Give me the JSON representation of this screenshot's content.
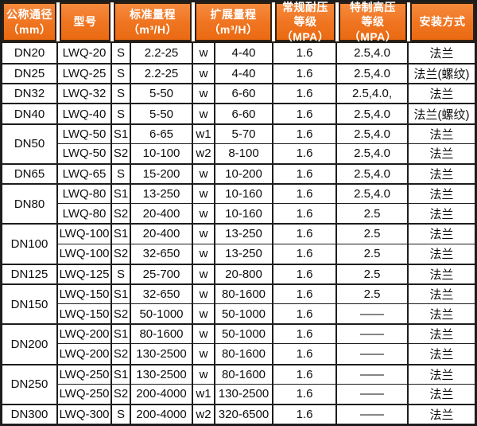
{
  "table": {
    "headers": [
      {
        "id": "dn",
        "label": "公称通径\n（mm）"
      },
      {
        "id": "model",
        "label": "型号"
      },
      {
        "id": "std",
        "label": "标准量程\n（m³/H）"
      },
      {
        "id": "ext",
        "label": "扩展量程\n（m³/H）"
      },
      {
        "id": "mpa",
        "label": "常规耐压\n等级（MPA）"
      },
      {
        "id": "hi",
        "label": "特制高压\n等级（MPA）"
      },
      {
        "id": "install",
        "label": "安装方式"
      }
    ],
    "colors": {
      "header_bg": "#ef7420",
      "header_bg_light": "#f68a3e",
      "header_text": "#ffffff",
      "border": "#1d1d1d",
      "body_bg": "#ffffff",
      "body_text": "#0d0d0d"
    },
    "groups": [
      {
        "dn": "DN20",
        "rows": [
          {
            "model": "LWQ-20",
            "s": "S",
            "std": "2.2-25",
            "w": "w",
            "ext": "4-40",
            "mpa": "1.6",
            "hi": "2.5,4.0",
            "install": "法兰"
          }
        ]
      },
      {
        "dn": "DN25",
        "rows": [
          {
            "model": "LWQ-25",
            "s": "S",
            "std": "2.2-25",
            "w": "w",
            "ext": "4-40",
            "mpa": "1.6",
            "hi": "2.5,4.0",
            "install": "法兰(螺纹)"
          }
        ]
      },
      {
        "dn": "DN32",
        "rows": [
          {
            "model": "LWQ-32",
            "s": "S",
            "std": "5-50",
            "w": "w",
            "ext": "6-60",
            "mpa": "1.6",
            "hi": "2.5,4.0,",
            "install": "法兰"
          }
        ]
      },
      {
        "dn": "DN40",
        "rows": [
          {
            "model": "LWQ-40",
            "s": "S",
            "std": "5-50",
            "w": "w",
            "ext": "6-60",
            "mpa": "1.6",
            "hi": "2.5,4.0",
            "install": "法兰(螺纹)"
          }
        ]
      },
      {
        "dn": "DN50",
        "rows": [
          {
            "model": "LWQ-50",
            "s": "S1",
            "std": "6-65",
            "w": "w1",
            "ext": "5-70",
            "mpa": "1.6",
            "hi": "2.5,4.0",
            "install": "法兰"
          },
          {
            "model": "LWQ-50",
            "s": "S2",
            "std": "10-100",
            "w": "w2",
            "ext": "8-100",
            "mpa": "1.6",
            "hi": "2.5,4.0",
            "install": "法兰"
          }
        ]
      },
      {
        "dn": "DN65",
        "rows": [
          {
            "model": "LWQ-65",
            "s": "S",
            "std": "15-200",
            "w": "w",
            "ext": "10-200",
            "mpa": "1.6",
            "hi": "2.5,4.0",
            "install": "法兰"
          }
        ]
      },
      {
        "dn": "DN80",
        "rows": [
          {
            "model": "LWQ-80",
            "s": "S1",
            "std": "13-250",
            "w": "w",
            "ext": "10-160",
            "mpa": "1.6",
            "hi": "2.5,4.0",
            "install": "法兰"
          },
          {
            "model": "LWQ-80",
            "s": "S2",
            "std": "20-400",
            "w": "w",
            "ext": "10-160",
            "mpa": "1.6",
            "hi": "2.5",
            "install": "法兰"
          }
        ]
      },
      {
        "dn": "DN100",
        "rows": [
          {
            "model": "LWQ-100",
            "s": "S1",
            "std": "20-400",
            "w": "w",
            "ext": "13-250",
            "mpa": "1.6",
            "hi": "2.5",
            "install": "法兰"
          },
          {
            "model": "LWQ-100",
            "s": "S2",
            "std": "32-650",
            "w": "w",
            "ext": "13-250",
            "mpa": "1.6",
            "hi": "2.5",
            "install": "法兰"
          }
        ]
      },
      {
        "dn": "DN125",
        "rows": [
          {
            "model": "LWQ-125",
            "s": "S",
            "std": "25-700",
            "w": "w",
            "ext": "20-800",
            "mpa": "1.6",
            "hi": "2.5",
            "install": "法兰"
          }
        ]
      },
      {
        "dn": "DN150",
        "rows": [
          {
            "model": "LWQ-150",
            "s": "S1",
            "std": "32-650",
            "w": "w",
            "ext": "80-1600",
            "mpa": "1.6",
            "hi": "2.5",
            "install": "法兰"
          },
          {
            "model": "LWQ-150",
            "s": "S2",
            "std": "50-1000",
            "w": "w",
            "ext": "50-1000",
            "mpa": "1.6",
            "hi": "——",
            "install": "法兰"
          }
        ]
      },
      {
        "dn": "DN200",
        "rows": [
          {
            "model": "LWQ-200",
            "s": "S1",
            "std": "80-1600",
            "w": "w",
            "ext": "50-1000",
            "mpa": "1.6",
            "hi": "——",
            "install": "法兰"
          },
          {
            "model": "LWQ-200",
            "s": "S2",
            "std": "130-2500",
            "w": "w",
            "ext": "80-1600",
            "mpa": "1.6",
            "hi": "——",
            "install": "法兰"
          }
        ]
      },
      {
        "dn": "DN250",
        "rows": [
          {
            "model": "LWQ-250",
            "s": "S1",
            "std": "130-2500",
            "w": "w",
            "ext": "80-1600",
            "mpa": "1.6",
            "hi": "——",
            "install": "法兰"
          },
          {
            "model": "LWQ-250",
            "s": "S2",
            "std": "200-4000",
            "w": "w1",
            "ext": "130-2500",
            "mpa": "1.6",
            "hi": "——",
            "install": "法兰"
          }
        ]
      },
      {
        "dn": "DN300",
        "rows": [
          {
            "model": "LWQ-300",
            "s": "S",
            "std": "200-4000",
            "w": "w2",
            "ext": "320-6500",
            "mpa": "1.6",
            "hi": "——",
            "install": "法兰"
          }
        ]
      }
    ]
  }
}
